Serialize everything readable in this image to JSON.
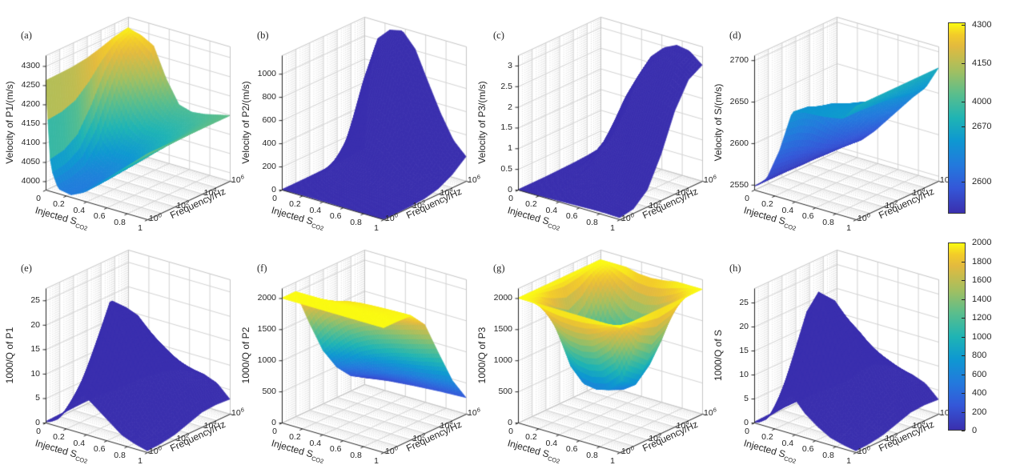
{
  "figure": {
    "background": "#ffffff",
    "text_color": "#262626",
    "colormap_stops": [
      [
        0.0,
        "#3a2fae"
      ],
      [
        0.13,
        "#3457d8"
      ],
      [
        0.25,
        "#2379dd"
      ],
      [
        0.38,
        "#0e98d1"
      ],
      [
        0.5,
        "#1fb4b4"
      ],
      [
        0.63,
        "#5cbe8b"
      ],
      [
        0.75,
        "#a3bf60"
      ],
      [
        0.88,
        "#e3ba3e"
      ],
      [
        0.94,
        "#f3cc29"
      ],
      [
        1.0,
        "#fbfb12"
      ]
    ]
  },
  "axes_common": {
    "xlabel_main": "Injected S",
    "xlabel_sub": "CO2",
    "ylabel": "Frequency/Hz",
    "xticks": [
      0,
      0.2,
      0.4,
      0.6,
      0.8,
      1
    ],
    "xtick_labels": [
      "0",
      "0.2",
      "0.4",
      "0.6",
      "0.8",
      "1"
    ],
    "ytick_exponents": [
      "0",
      "2",
      "4",
      "6"
    ]
  },
  "chart_data": [
    {
      "type": "surface3d",
      "panel": "(a)",
      "zlabel": "Velocity of P1/(m/s)",
      "xlabel": "Injected S_CO2",
      "ylabel": "Frequency/Hz",
      "zlim": [
        3978,
        4328
      ],
      "zticks": [
        4000,
        4050,
        4100,
        4150,
        4200,
        4250,
        4300
      ],
      "ztick_labels": [
        "4000",
        "4050",
        "4100",
        "4150",
        "4200",
        "4250",
        "4300"
      ],
      "color_domain": [
        3960,
        4305
      ],
      "color_range": [
        0.2,
        1
      ],
      "x": [
        0,
        0.05,
        0.125,
        0.25,
        0.375,
        0.5,
        0.625,
        0.75,
        0.875,
        1
      ],
      "logf": [
        0,
        1,
        2,
        3,
        4,
        5,
        6
      ],
      "z": [
        [
          4262,
          4263,
          4265,
          4270,
          4280,
          4292,
          4300
        ],
        [
          4040,
          4048,
          4075,
          4140,
          4220,
          4275,
          4295
        ],
        [
          3990,
          3993,
          4005,
          4050,
          4140,
          4235,
          4290
        ],
        [
          3984,
          3987,
          3994,
          4018,
          4075,
          4170,
          4272
        ],
        [
          4000,
          4002,
          4007,
          4022,
          4058,
          4115,
          4195
        ],
        [
          4028,
          4030,
          4034,
          4044,
          4068,
          4100,
          4138
        ],
        [
          4058,
          4059,
          4062,
          4070,
          4084,
          4104,
          4128
        ],
        [
          4088,
          4089,
          4091,
          4096,
          4104,
          4116,
          4132
        ],
        [
          4118,
          4119,
          4120,
          4123,
          4128,
          4134,
          4140
        ],
        [
          4148,
          4148,
          4148,
          4148,
          4148,
          4148,
          4148
        ]
      ]
    },
    {
      "type": "surface3d",
      "panel": "(b)",
      "zlabel": "Velocity of P2/(m/s)",
      "xlabel": "Injected S_CO2",
      "ylabel": "Frequency/Hz",
      "zlim": [
        0,
        1160
      ],
      "zticks": [
        0,
        200,
        400,
        600,
        800,
        1000
      ],
      "ztick_labels": [
        "0",
        "200",
        "400",
        "600",
        "800",
        "1000"
      ],
      "color_domain": [
        0,
        1
      ],
      "color_range": [
        0,
        0
      ],
      "x": [
        0,
        0.05,
        0.125,
        0.25,
        0.375,
        0.5,
        0.625,
        0.75,
        0.875,
        1
      ],
      "logf": [
        0,
        1,
        2,
        3,
        4,
        5,
        6
      ],
      "z": [
        [
          1,
          1,
          2,
          4,
          8,
          15,
          25
        ],
        [
          2,
          4,
          10,
          35,
          120,
          350,
          650
        ],
        [
          3,
          7,
          25,
          90,
          300,
          700,
          1000
        ],
        [
          5,
          10,
          40,
          150,
          480,
          920,
          1110
        ],
        [
          5,
          11,
          42,
          155,
          500,
          950,
          1135
        ],
        [
          4,
          9,
          35,
          125,
          410,
          820,
          1010
        ],
        [
          3,
          7,
          25,
          85,
          260,
          560,
          760
        ],
        [
          2,
          5,
          15,
          50,
          155,
          360,
          520
        ],
        [
          1,
          3,
          8,
          26,
          85,
          190,
          320
        ],
        [
          1,
          2,
          5,
          15,
          45,
          110,
          210
        ]
      ]
    },
    {
      "type": "surface3d",
      "panel": "(c)",
      "zlabel": "Velocity of P3/(m/s)",
      "xlabel": "Injected S_CO2",
      "ylabel": "Frequency/Hz",
      "zlim": [
        0,
        3.25
      ],
      "zticks": [
        0,
        0.5,
        1,
        1.5,
        2,
        2.5,
        3
      ],
      "ztick_labels": [
        "0",
        "0.5",
        "1",
        "1.5",
        "2",
        "2.5",
        "3"
      ],
      "color_domain": [
        0,
        1
      ],
      "color_range": [
        0,
        0
      ],
      "x": [
        0,
        0.05,
        0.125,
        0.25,
        0.375,
        0.5,
        0.625,
        0.75,
        0.875,
        1
      ],
      "logf": [
        0,
        1,
        2,
        3,
        4,
        5,
        6
      ],
      "z": [
        [
          0,
          0,
          0,
          0.01,
          0.02,
          0.04,
          0.08
        ],
        [
          0,
          0,
          0.01,
          0.02,
          0.05,
          0.1,
          0.2
        ],
        [
          0,
          0.01,
          0.02,
          0.06,
          0.15,
          0.3,
          0.5
        ],
        [
          0.01,
          0.02,
          0.06,
          0.2,
          0.5,
          0.85,
          1.2
        ],
        [
          0.02,
          0.05,
          0.17,
          0.55,
          1.1,
          1.7,
          2.1
        ],
        [
          0.03,
          0.08,
          0.3,
          0.9,
          1.7,
          2.3,
          2.65
        ],
        [
          0.04,
          0.1,
          0.4,
          1.1,
          2,
          2.65,
          2.95
        ],
        [
          0.05,
          0.12,
          0.45,
          1.2,
          2.15,
          2.85,
          3.1
        ],
        [
          0.05,
          0.12,
          0.45,
          1.2,
          2.15,
          2.85,
          3.05
        ],
        [
          0.04,
          0.1,
          0.4,
          1.1,
          2,
          2.6,
          2.8
        ]
      ]
    },
    {
      "type": "surface3d",
      "panel": "(d)",
      "zlabel": "Velocity of S/(m/s)",
      "xlabel": "Injected S_CO2",
      "ylabel": "Frequency/Hz",
      "zlim": [
        2544,
        2706
      ],
      "zticks": [
        2550,
        2600,
        2650,
        2700
      ],
      "ztick_labels": [
        "2550",
        "2600",
        "2650",
        "2700"
      ],
      "color_domain": [
        2548,
        2688
      ],
      "color_range": [
        0.02,
        0.49
      ],
      "x": [
        0,
        0.05,
        0.125,
        0.25,
        0.375,
        0.5,
        0.625,
        0.75,
        0.875,
        1
      ],
      "logf": [
        0,
        1,
        2,
        3,
        4,
        5,
        6
      ],
      "z": [
        [
          2548,
          2548,
          2548,
          2548,
          2548,
          2548,
          2548
        ],
        [
          2553,
          2553,
          2553,
          2552,
          2552,
          2551,
          2551
        ],
        [
          2562,
          2562,
          2561,
          2560,
          2559,
          2558,
          2557
        ],
        [
          2600,
          2597,
          2590,
          2580,
          2573,
          2569,
          2567
        ],
        [
          2651,
          2649,
          2638,
          2616,
          2598,
          2588,
          2582
        ],
        [
          2655,
          2654,
          2650,
          2638,
          2620,
          2607,
          2600
        ],
        [
          2656,
          2656,
          2654,
          2648,
          2638,
          2626,
          2618
        ],
        [
          2658,
          2658,
          2657,
          2654,
          2649,
          2642,
          2636
        ],
        [
          2661,
          2661,
          2660,
          2659,
          2657,
          2654,
          2652
        ],
        [
          2680,
          2680,
          2680,
          2680,
          2680,
          2680,
          2680
        ]
      ]
    },
    {
      "type": "surface3d",
      "panel": "(e)",
      "zlabel": "1000/Q of P1",
      "xlabel": "Injected S_CO2",
      "ylabel": "Frequency/Hz",
      "zlim": [
        0,
        27.5
      ],
      "zticks": [
        0,
        5,
        10,
        15,
        20,
        25
      ],
      "ztick_labels": [
        "0",
        "5",
        "10",
        "15",
        "20",
        "25"
      ],
      "color_domain": [
        0,
        1
      ],
      "color_range": [
        0,
        0
      ],
      "x": [
        0,
        0.05,
        0.125,
        0.25,
        0.375,
        0.5,
        0.625,
        0.75,
        0.875,
        1
      ],
      "logf": [
        0,
        1,
        2,
        3,
        4,
        5,
        6
      ],
      "z": [
        [
          0.2,
          0.3,
          0.4,
          0.5,
          0.4,
          0.3,
          0.2
        ],
        [
          0.5,
          1,
          1.8,
          2.2,
          1.8,
          1.2,
          0.8
        ],
        [
          1.5,
          3.5,
          6,
          6.5,
          5,
          3,
          2
        ],
        [
          5,
          10,
          16.5,
          15,
          10,
          6,
          3.5
        ],
        [
          8,
          15,
          25,
          22,
          15,
          9,
          5
        ],
        [
          6,
          12,
          20,
          21,
          16,
          10,
          6
        ],
        [
          4,
          8,
          14,
          17,
          14,
          10,
          6.5
        ],
        [
          2,
          5,
          9,
          12,
          11,
          9,
          6.5
        ],
        [
          1,
          2,
          4,
          7,
          8,
          7,
          5.5
        ],
        [
          0.3,
          0.5,
          1,
          2,
          3,
          3.2,
          3
        ]
      ]
    },
    {
      "type": "surface3d",
      "panel": "(f)",
      "zlabel": "1000/Q of P2",
      "xlabel": "Injected S_CO2",
      "ylabel": "Frequency/Hz",
      "zlim": [
        0,
        2160
      ],
      "zticks": [
        0,
        500,
        1000,
        1500,
        2000
      ],
      "ztick_labels": [
        "0",
        "500",
        "1000",
        "1500",
        "2000"
      ],
      "color_domain": [
        0,
        2000
      ],
      "color_range": [
        0,
        1
      ],
      "x": [
        0,
        0.05,
        0.125,
        0.25,
        0.375,
        0.5,
        0.625,
        0.75,
        0.875,
        1
      ],
      "logf": [
        0,
        1,
        2,
        3,
        4,
        5,
        6
      ],
      "z": [
        [
          2000,
          2000,
          1400,
          850,
          480,
          240,
          110
        ],
        [
          2000,
          2000,
          1550,
          950,
          530,
          270,
          120
        ],
        [
          2000,
          2000,
          1700,
          1100,
          620,
          320,
          140
        ],
        [
          2000,
          2000,
          1850,
          1300,
          780,
          400,
          170
        ],
        [
          2000,
          2000,
          1920,
          1420,
          880,
          460,
          190
        ],
        [
          2000,
          2000,
          1950,
          1500,
          950,
          510,
          210
        ],
        [
          2000,
          2000,
          1965,
          1560,
          1010,
          550,
          225
        ],
        [
          2000,
          2000,
          1975,
          1620,
          1060,
          580,
          240
        ],
        [
          2000,
          2000,
          1982,
          1680,
          1120,
          610,
          250
        ],
        [
          2000,
          2000,
          1988,
          1740,
          1180,
          640,
          260
        ]
      ]
    },
    {
      "type": "surface3d",
      "panel": "(g)",
      "zlabel": "1000/Q of P3",
      "xlabel": "Injected S_CO2",
      "ylabel": "Frequency/Hz",
      "zlim": [
        0,
        2160
      ],
      "zticks": [
        0,
        500,
        1000,
        1500,
        2000
      ],
      "ztick_labels": [
        "0",
        "500",
        "1000",
        "1500",
        "2000"
      ],
      "color_domain": [
        0,
        2000
      ],
      "color_range": [
        0,
        1
      ],
      "x": [
        0,
        0.05,
        0.125,
        0.25,
        0.375,
        0.5,
        0.625,
        0.75,
        0.875,
        1
      ],
      "logf": [
        0,
        1,
        2,
        3,
        4,
        5,
        6
      ],
      "z": [
        [
          2000,
          2000,
          2000,
          2000,
          2000,
          2000,
          2000
        ],
        [
          2000,
          1980,
          1920,
          1880,
          1920,
          1980,
          2000
        ],
        [
          2000,
          1850,
          1500,
          1250,
          1450,
          1850,
          2000
        ],
        [
          2000,
          1500,
          820,
          620,
          820,
          1450,
          2000
        ],
        [
          2000,
          1320,
          600,
          495,
          650,
          1220,
          1950
        ],
        [
          2000,
          1280,
          570,
          482,
          625,
          1180,
          1940
        ],
        [
          2000,
          1330,
          620,
          520,
          690,
          1270,
          1960
        ],
        [
          2000,
          1520,
          820,
          660,
          870,
          1470,
          2000
        ],
        [
          2000,
          1820,
          1350,
          1150,
          1350,
          1820,
          2000
        ],
        [
          2000,
          2000,
          2000,
          2000,
          2000,
          2000,
          2000
        ]
      ]
    },
    {
      "type": "surface3d",
      "panel": "(h)",
      "zlabel": "1000/Q of S",
      "xlabel": "Injected S_CO2",
      "ylabel": "Frequency/Hz",
      "zlim": [
        0,
        28
      ],
      "zticks": [
        0,
        5,
        10,
        15,
        20,
        25
      ],
      "ztick_labels": [
        "0",
        "5",
        "10",
        "15",
        "20",
        "25"
      ],
      "color_domain": [
        0,
        1
      ],
      "color_range": [
        0,
        0
      ],
      "x": [
        0,
        0.05,
        0.125,
        0.25,
        0.375,
        0.5,
        0.625,
        0.75,
        0.875,
        1
      ],
      "logf": [
        0,
        1,
        2,
        3,
        4,
        5,
        6
      ],
      "z": [
        [
          0.1,
          0.2,
          0.3,
          0.3,
          0.3,
          0.2,
          0.2
        ],
        [
          0.4,
          0.8,
          1.2,
          1.3,
          1.1,
          0.8,
          0.6
        ],
        [
          1.5,
          3.5,
          5.5,
          5,
          4,
          2.5,
          1.8
        ],
        [
          6,
          14,
          22,
          18,
          12,
          7.5,
          4.5
        ],
        [
          8,
          18,
          27.2,
          24,
          16.5,
          10.5,
          6.5
        ],
        [
          5,
          12,
          20.5,
          21,
          16.5,
          11,
          7
        ],
        [
          3,
          7,
          13,
          16,
          14,
          10.5,
          7
        ],
        [
          1.5,
          4,
          8,
          11,
          11,
          9,
          6.5
        ],
        [
          0.8,
          1.5,
          3,
          6,
          7.5,
          7,
          5.5
        ],
        [
          0.3,
          0.5,
          1,
          2,
          3,
          3.2,
          3
        ]
      ]
    }
  ],
  "colorbars": [
    {
      "id": "top",
      "ticks": [
        {
          "label": "4300",
          "pos": 0.012
        },
        {
          "label": "4150",
          "pos": 0.213
        },
        {
          "label": "4000",
          "pos": 0.415
        },
        {
          "label": "2670",
          "pos": 0.544
        },
        {
          "label": "2600",
          "pos": 0.833
        }
      ]
    },
    {
      "id": "bottom",
      "ticks": [
        {
          "label": "2000",
          "pos": 0.0
        },
        {
          "label": "1800",
          "pos": 0.1
        },
        {
          "label": "1600",
          "pos": 0.2
        },
        {
          "label": "1400",
          "pos": 0.3
        },
        {
          "label": "1200",
          "pos": 0.4
        },
        {
          "label": "1000",
          "pos": 0.5
        },
        {
          "label": "800",
          "pos": 0.6
        },
        {
          "label": "600",
          "pos": 0.7
        },
        {
          "label": "400",
          "pos": 0.8
        },
        {
          "label": "200",
          "pos": 0.9
        },
        {
          "label": "0",
          "pos": 1.0
        }
      ]
    }
  ]
}
